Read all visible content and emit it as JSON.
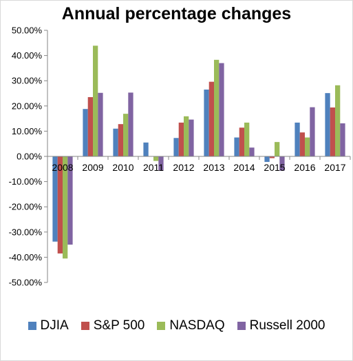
{
  "chart_data": {
    "type": "bar",
    "title": "Annual percentage changes",
    "xlabel": "",
    "ylabel": "",
    "categories": [
      "2008",
      "2009",
      "2010",
      "2011",
      "2012",
      "2013",
      "2014",
      "2015",
      "2016",
      "2017"
    ],
    "series": [
      {
        "name": "DJIA",
        "color": "#4f81bd",
        "values": [
          -33.8,
          18.8,
          11.0,
          5.5,
          7.3,
          26.5,
          7.5,
          -2.2,
          13.4,
          25.1
        ]
      },
      {
        "name": "S&P 500",
        "color": "#c0504d",
        "values": [
          -38.5,
          23.5,
          12.8,
          0.0,
          13.4,
          29.6,
          11.4,
          -0.7,
          9.5,
          19.4
        ]
      },
      {
        "name": "NASDAQ",
        "color": "#9bbb59",
        "values": [
          -40.5,
          43.9,
          16.9,
          -1.8,
          15.9,
          38.3,
          13.4,
          5.7,
          7.5,
          28.2
        ]
      },
      {
        "name": "Russell 2000",
        "color": "#8064a2",
        "values": [
          -35.0,
          25.2,
          25.3,
          -5.5,
          14.6,
          37.0,
          3.5,
          -5.7,
          19.5,
          13.1
        ]
      }
    ],
    "ylim": [
      -50,
      50
    ],
    "yticks": [
      "50.00%",
      "40.00%",
      "30.00%",
      "20.00%",
      "10.00%",
      "0.00%",
      "-10.00%",
      "-20.00%",
      "-30.00%",
      "-40.00%",
      "-50.00%"
    ],
    "grid": false,
    "legend_position": "bottom"
  }
}
